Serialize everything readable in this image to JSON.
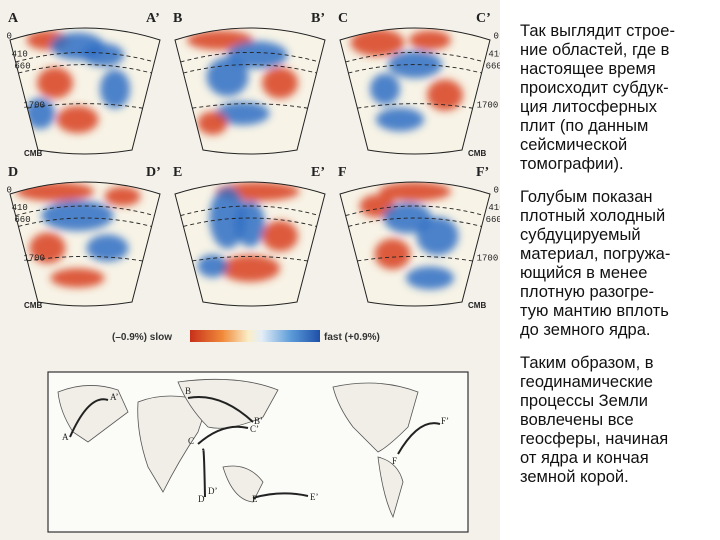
{
  "panels": [
    {
      "id": "A",
      "start": "A",
      "end": "A’",
      "depths": [
        "0",
        "410",
        "660",
        "1700"
      ],
      "depth_side": "left",
      "cmb": "CMB"
    },
    {
      "id": "B",
      "start": "B",
      "end": "B’",
      "depths": [],
      "depth_side": "none",
      "cmb": ""
    },
    {
      "id": "C",
      "start": "C",
      "end": "C’",
      "depths": [
        "0",
        "410",
        "660",
        "1700"
      ],
      "depth_side": "right",
      "cmb": "CMB"
    },
    {
      "id": "D",
      "start": "D",
      "end": "D’",
      "depths": [
        "0",
        "410",
        "660",
        "1700"
      ],
      "depth_side": "left",
      "cmb": "CMB"
    },
    {
      "id": "E",
      "start": "E",
      "end": "E’",
      "depths": [],
      "depth_side": "none",
      "cmb": ""
    },
    {
      "id": "F",
      "start": "F",
      "end": "F’",
      "depths": [
        "0",
        "410",
        "660",
        "1700"
      ],
      "depth_side": "right",
      "cmb": "CMB"
    }
  ],
  "colorbar": {
    "slow_label": "(–0.9%) slow",
    "fast_label": "fast (+0.9%)"
  },
  "map": {
    "labels": [
      "A",
      "A’",
      "B",
      "B’",
      "C",
      "C’",
      "D",
      "D’",
      "E",
      "E’",
      "F",
      "F’"
    ],
    "colors": {
      "profile_line": "#222222",
      "coast": "#555555"
    }
  },
  "colors": {
    "slow": "#d8411c",
    "fast": "#2f6fc4",
    "neutral": "#f7f3e6"
  },
  "text": {
    "paragraph1": "Так выглядит строе-\nние областей, где в\nнастоящее время\nпроисходит субдук-\nция литосферных\nплит (по данным\nсейсмической\nтомографии).",
    "paragraph2": "Голубым показан\nплотный холодный\nсубдуцируемый\nматериал, погружа-\nющийся в менее\nплотную разогре-\nтую мантию вплоть\nдо земного ядра.",
    "paragraph3": "Таким образом, в\nгеодинамические\nпроцессы Земли\nвовлечены все\nгеосферы, начиная\nот ядра и кончая\nземной корой."
  }
}
